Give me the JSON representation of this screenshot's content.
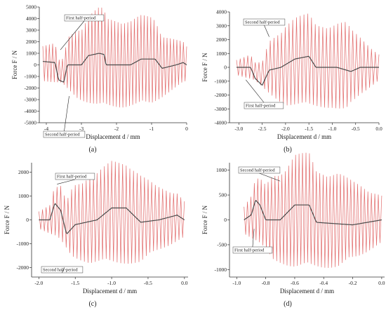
{
  "colors": {
    "oscillation": "#e26b6b",
    "envelope": "#4a4a4a",
    "axis": "#333333",
    "annotation_box": "#444444"
  },
  "chart_data": [
    {
      "type": "line",
      "label": "(a)",
      "ylabel": "Force F / N",
      "xlabel": "Displacement d / mm",
      "xlim": [
        -4.2,
        0
      ],
      "ylim": [
        -5000,
        5000
      ],
      "xticks": [
        "-4",
        "-3",
        "-2",
        "-1",
        "0"
      ],
      "yticks": [
        "5000",
        "4000",
        "3000",
        "2000",
        "1000",
        "0",
        "-1000",
        "-2000",
        "-3000",
        "-4000",
        "-5000"
      ],
      "xtick_values": [
        -4,
        -3,
        -2,
        -1,
        0
      ],
      "ytick_values": [
        5000,
        4000,
        3000,
        2000,
        1000,
        0,
        -1000,
        -2000,
        -3000,
        -4000,
        -5000
      ],
      "cycles": 44,
      "amplitude_envelope": [
        [
          -4.1,
          1500
        ],
        [
          -3.6,
          1800
        ],
        [
          -3.1,
          3200
        ],
        [
          -2.5,
          4000
        ],
        [
          -1.8,
          4000
        ],
        [
          -1.0,
          3700
        ],
        [
          -0.5,
          2600
        ],
        [
          0.0,
          1600
        ]
      ],
      "mean_curve": [
        [
          -4.1,
          300
        ],
        [
          -3.75,
          200
        ],
        [
          -3.65,
          -1300
        ],
        [
          -3.5,
          -1500
        ],
        [
          -3.4,
          0
        ],
        [
          -3.0,
          0
        ],
        [
          -2.8,
          800
        ],
        [
          -2.5,
          1000
        ],
        [
          -2.35,
          900
        ],
        [
          -2.3,
          0
        ],
        [
          -1.6,
          0
        ],
        [
          -1.3,
          500
        ],
        [
          -0.9,
          500
        ],
        [
          -0.7,
          -300
        ],
        [
          -0.3,
          0
        ],
        [
          -0.1,
          200
        ],
        [
          0.0,
          0
        ]
      ],
      "annotations": [
        {
          "text": "First half-period",
          "x": -3.6,
          "y": 1300
        },
        {
          "text": "Second half-period",
          "x": -3.35,
          "y": -2700
        }
      ]
    },
    {
      "type": "line",
      "label": "(b)",
      "ylabel": "Force F / N",
      "xlabel": "Displacement d / mm",
      "xlim": [
        -3.2,
        0
      ],
      "ylim": [
        -4000,
        4000
      ],
      "xticks": [
        "-3.0",
        "-2.5",
        "-2.0",
        "-1.5",
        "-1.0",
        "-0.5",
        "0.0"
      ],
      "yticks": [
        "4000",
        "3000",
        "2000",
        "1000",
        "0",
        "-1000",
        "-2000",
        "-3000",
        "-4000"
      ],
      "xtick_values": [
        -3.0,
        -2.5,
        -2.0,
        -1.5,
        -1.0,
        -0.5,
        0.0
      ],
      "ytick_values": [
        4000,
        3000,
        2000,
        1000,
        0,
        -1000,
        -2000,
        -3000,
        -4000
      ],
      "cycles": 38,
      "amplitude_envelope": [
        [
          -3.05,
          600
        ],
        [
          -2.7,
          1000
        ],
        [
          -2.4,
          2000
        ],
        [
          -2.0,
          3000
        ],
        [
          -1.0,
          3200
        ],
        [
          -0.7,
          3500
        ],
        [
          -0.4,
          2200
        ],
        [
          0.0,
          1000
        ]
      ],
      "mean_curve": [
        [
          -3.05,
          0
        ],
        [
          -2.75,
          0
        ],
        [
          -2.65,
          -800
        ],
        [
          -2.5,
          -1300
        ],
        [
          -2.35,
          -200
        ],
        [
          -2.1,
          0
        ],
        [
          -1.8,
          600
        ],
        [
          -1.5,
          800
        ],
        [
          -1.35,
          0
        ],
        [
          -0.9,
          0
        ],
        [
          -0.6,
          -300
        ],
        [
          -0.4,
          0
        ],
        [
          0.0,
          0
        ]
      ],
      "annotations": [
        {
          "text": "Second half-period",
          "x": -2.35,
          "y": 2200
        },
        {
          "text": "First half-period",
          "x": -2.85,
          "y": -900
        }
      ]
    },
    {
      "type": "line",
      "label": "(c)",
      "ylabel": "Force F / N",
      "xlabel": "Displacement d / mm",
      "xlim": [
        -2.1,
        0.05
      ],
      "ylim": [
        -2400,
        2400
      ],
      "xticks": [
        "-2.0",
        "-1.5",
        "-1.0",
        "-0.5",
        "0.0"
      ],
      "yticks": [
        "2000",
        "1000",
        "0",
        "-1000",
        "-2000"
      ],
      "xtick_values": [
        -2.0,
        -1.5,
        -1.0,
        -0.5,
        0.0
      ],
      "ytick_values": [
        2000,
        1000,
        0,
        -1000,
        -2000
      ],
      "cycles": 40,
      "amplitude_envelope": [
        [
          -2.0,
          400
        ],
        [
          -1.75,
          800
        ],
        [
          -1.55,
          1700
        ],
        [
          -1.3,
          2000
        ],
        [
          -0.6,
          2000
        ],
        [
          -0.4,
          1500
        ],
        [
          0.0,
          800
        ]
      ],
      "mean_curve": [
        [
          -2.0,
          0
        ],
        [
          -1.85,
          0
        ],
        [
          -1.78,
          700
        ],
        [
          -1.7,
          400
        ],
        [
          -1.62,
          -600
        ],
        [
          -1.5,
          -200
        ],
        [
          -1.2,
          0
        ],
        [
          -1.0,
          500
        ],
        [
          -0.8,
          500
        ],
        [
          -0.6,
          -100
        ],
        [
          -0.35,
          0
        ],
        [
          -0.1,
          200
        ],
        [
          0.0,
          0
        ]
      ],
      "annotations": [
        {
          "text": "First half-period",
          "x": -1.75,
          "y": 1500
        },
        {
          "text": "Second half-period",
          "x": -1.65,
          "y": -2000
        }
      ]
    },
    {
      "type": "line",
      "label": "(d)",
      "ylabel": "Force F / N",
      "xlabel": "Displacement d / mm",
      "xlim": [
        -1.05,
        0.02
      ],
      "ylim": [
        -1150,
        1150
      ],
      "xticks": [
        "-1.0",
        "-0.8",
        "-0.6",
        "-0.4",
        "-0.2",
        "0.0"
      ],
      "yticks": [
        "1000",
        "500",
        "0",
        "-500",
        "-1000"
      ],
      "xtick_values": [
        -1.0,
        -0.8,
        -0.6,
        -0.4,
        -0.2,
        0.0
      ],
      "ytick_values": [
        1000,
        500,
        0,
        -500,
        -1000
      ],
      "cycles": 40,
      "amplitude_envelope": [
        [
          -0.95,
          300
        ],
        [
          -0.85,
          500
        ],
        [
          -0.75,
          900
        ],
        [
          -0.6,
          1050
        ],
        [
          -0.3,
          1050
        ],
        [
          -0.15,
          800
        ],
        [
          0.0,
          500
        ]
      ],
      "mean_curve": [
        [
          -0.95,
          0
        ],
        [
          -0.9,
          100
        ],
        [
          -0.87,
          400
        ],
        [
          -0.84,
          300
        ],
        [
          -0.8,
          0
        ],
        [
          -0.7,
          0
        ],
        [
          -0.6,
          300
        ],
        [
          -0.5,
          300
        ],
        [
          -0.45,
          -50
        ],
        [
          -0.2,
          -100
        ],
        [
          0.0,
          0
        ]
      ],
      "annotations": [
        {
          "text": "Second half-period",
          "x": -0.7,
          "y": 780
        },
        {
          "text": "First half-period",
          "x": -0.88,
          "y": -180
        }
      ]
    }
  ]
}
